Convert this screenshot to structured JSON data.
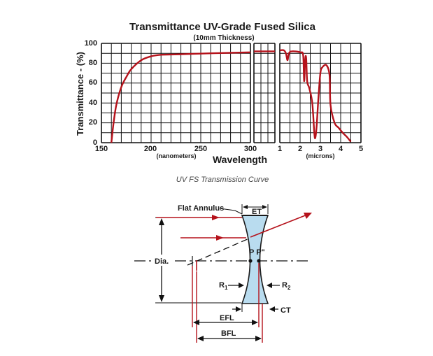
{
  "chart": {
    "title": "Transmittance UV-Grade Fused Silica",
    "subtitle": "(10mm Thickness)",
    "ylabel": "Transmittance - (%)",
    "xlabel": "Wavelength",
    "nm_unit": "(nanometers)",
    "micron_unit": "(microns)",
    "y_ticks": [
      "0",
      "20",
      "40",
      "60",
      "80",
      "100"
    ],
    "nm_ticks": [
      "150",
      "200",
      "250",
      "300"
    ],
    "micron_ticks": [
      "1",
      "2",
      "3",
      "4",
      "5"
    ],
    "caption": "UV FS Transmission Curve",
    "colors": {
      "curve": "#b5121b",
      "grid": "#111111"
    }
  },
  "chart_data": {
    "type": "line",
    "title": "Transmittance UV-Grade Fused Silica",
    "subtitle": "(10mm Thickness)",
    "ylabel": "Transmittance - (%)",
    "xlabel": "Wavelength",
    "ylim": [
      0,
      100
    ],
    "grid": true,
    "panels": [
      {
        "unit": "nanometers",
        "xlim": [
          150,
          300
        ],
        "points": [
          [
            160,
            0
          ],
          [
            162,
            18
          ],
          [
            165,
            38
          ],
          [
            170,
            56
          ],
          [
            175,
            66
          ],
          [
            180,
            74
          ],
          [
            190,
            83
          ],
          [
            200,
            87
          ],
          [
            210,
            88.5
          ],
          [
            230,
            89
          ],
          [
            260,
            90
          ],
          [
            300,
            91
          ]
        ]
      },
      {
        "unit": "nanometers",
        "xlim": [
          300,
          400
        ],
        "points": [
          [
            300,
            92
          ],
          [
            400,
            92
          ]
        ]
      },
      {
        "unit": "microns",
        "xlim": [
          1,
          5
        ],
        "points": [
          [
            1,
            93
          ],
          [
            1.2,
            93
          ],
          [
            1.3,
            90
          ],
          [
            1.38,
            83
          ],
          [
            1.45,
            90
          ],
          [
            1.6,
            92
          ],
          [
            2,
            91
          ],
          [
            2.15,
            88
          ],
          [
            2.2,
            62
          ],
          [
            2.25,
            84
          ],
          [
            2.3,
            85
          ],
          [
            2.35,
            62
          ],
          [
            2.45,
            55
          ],
          [
            2.6,
            40
          ],
          [
            2.7,
            10
          ],
          [
            2.75,
            5
          ],
          [
            2.82,
            18
          ],
          [
            2.9,
            44
          ],
          [
            3.0,
            70
          ],
          [
            3.1,
            76
          ],
          [
            3.3,
            78
          ],
          [
            3.45,
            68
          ],
          [
            3.5,
            38
          ],
          [
            3.7,
            20
          ],
          [
            3.9,
            15
          ],
          [
            4.1,
            10
          ],
          [
            4.3,
            6
          ],
          [
            4.5,
            1
          ]
        ]
      }
    ]
  },
  "diagram": {
    "labels": {
      "flat_annulus": "Flat Annulus",
      "et": "ET",
      "dia": "Dia.",
      "pp": "P P\"",
      "r1": "R",
      "r1_sub": "1",
      "r2": "R",
      "r2_sub": "2",
      "ct": "CT",
      "efl": "EFL",
      "bfl": "BFL"
    },
    "colors": {
      "lens_fill": "#b9dcef",
      "lens_edge": "#1a1a1a",
      "ray": "#b5121b"
    }
  }
}
